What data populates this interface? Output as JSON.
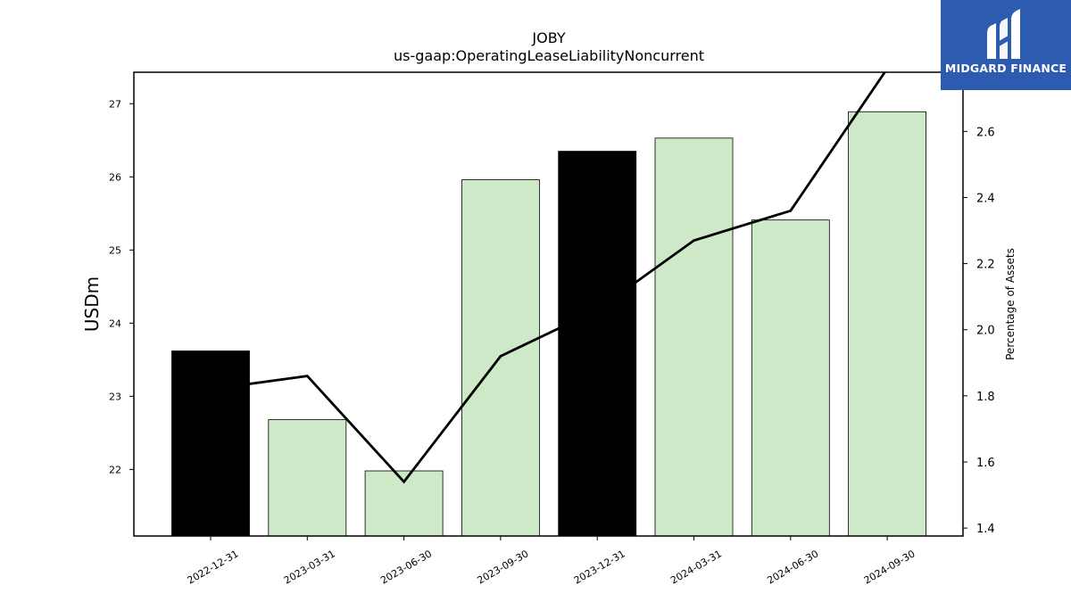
{
  "chart_data": {
    "type": "bar",
    "title": "JOBY",
    "subtitle": "us-gaap:OperatingLeaseLiabilityNoncurrent",
    "ylabel": "USDm",
    "y2label": "Percentage of Assets",
    "categories": [
      "2022-12-31",
      "2023-03-31",
      "2023-06-30",
      "2023-09-30",
      "2023-12-31",
      "2024-03-31",
      "2024-06-30",
      "2024-09-30"
    ],
    "series": [
      {
        "values": [
          23.62,
          22.68,
          21.98,
          25.96,
          26.35,
          26.53,
          25.41,
          26.89
        ],
        "axis": "left",
        "kind": "bar"
      },
      {
        "values": [
          1.82,
          1.86,
          1.54,
          1.92,
          2.06,
          2.27,
          2.36,
          2.79
        ],
        "axis": "right",
        "kind": "line"
      }
    ],
    "bar_colors": [
      "#000000",
      "#cde9c7",
      "#cde9c7",
      "#cde9c7",
      "#000000",
      "#cde9c7",
      "#cde9c7",
      "#cde9c7"
    ],
    "line_color": "#000000",
    "ylim": [
      21.09,
      27.43
    ],
    "y2lim": [
      1.376,
      2.779
    ],
    "yticks": [
      22,
      23,
      24,
      25,
      26,
      27
    ],
    "y2ticks": [
      1.4,
      1.6,
      1.8,
      2.0,
      2.2,
      2.4,
      2.6
    ],
    "y2tick_labels": [
      "1.4",
      "1.6",
      "1.8",
      "2.0",
      "2.2",
      "2.4",
      "2.6"
    ],
    "grid": false
  },
  "logo": {
    "text": "MIDGARD FINANCE",
    "background": "#2d5bb0"
  }
}
